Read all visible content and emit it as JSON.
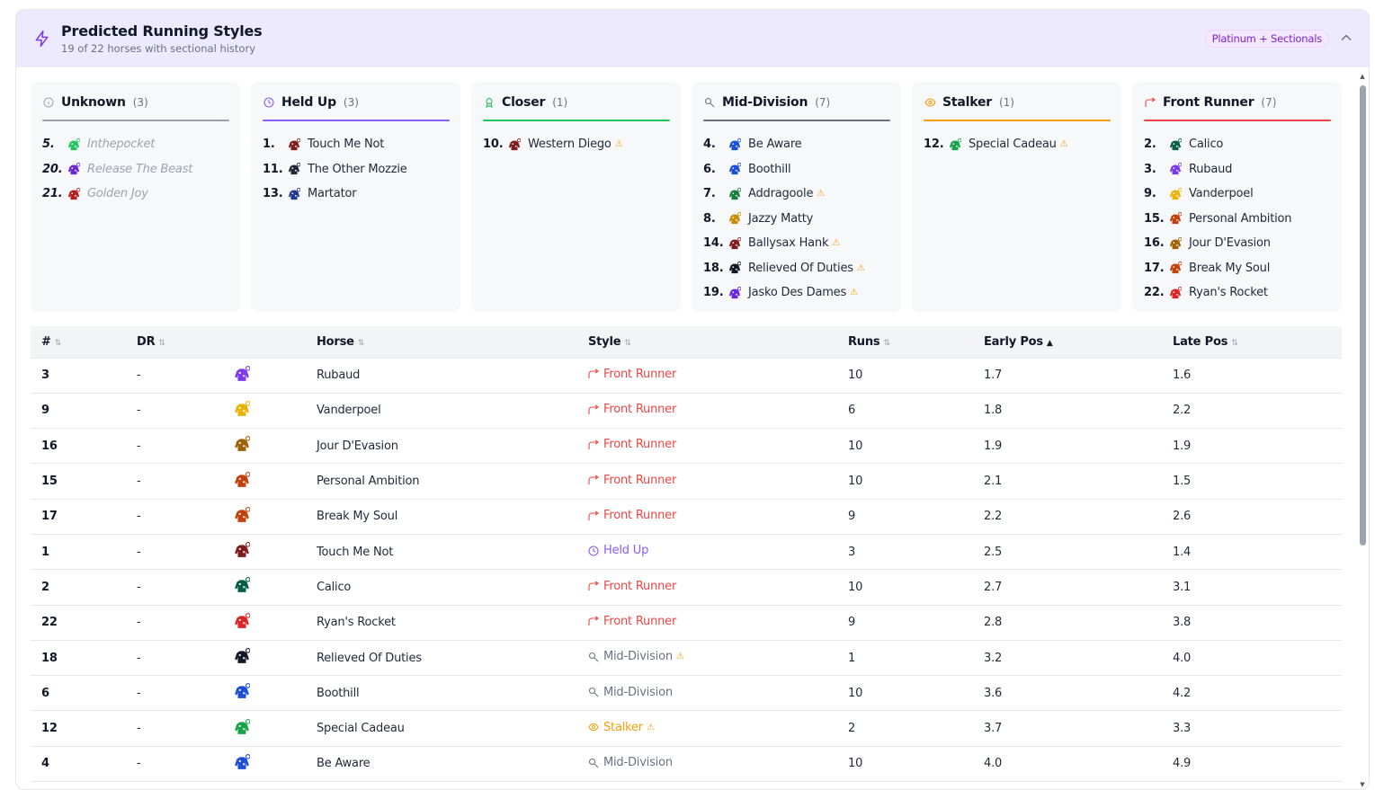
{
  "header": {
    "title": "Predicted Running Styles",
    "subtitle": "19 of 22 horses with sectional history",
    "badge": "Platinum + Sectionals"
  },
  "colors": {
    "unknown": "#9ca3af",
    "held_up": "#8b5cf6",
    "closer": "#22c55e",
    "mid_division": "#6b7280",
    "stalker": "#f59e0b",
    "front_runner": "#ef4444"
  },
  "styles": [
    {
      "key": "unknown",
      "name": "Unknown",
      "count": "(3)",
      "icon": "info-circle-icon",
      "items": [
        {
          "num": "5.",
          "name": "Inthepocket",
          "faded": true,
          "silk": "#22c55e"
        },
        {
          "num": "20.",
          "name": "Release The Beast",
          "faded": true,
          "silk": "#6d28d9"
        },
        {
          "num": "21.",
          "name": "Golden Joy",
          "faded": true,
          "silk": "#b91c1c"
        }
      ]
    },
    {
      "key": "held_up",
      "name": "Held Up",
      "count": "(3)",
      "icon": "clock-icon",
      "items": [
        {
          "num": "1.",
          "name": "Touch Me Not",
          "silk": "#7f1d1d"
        },
        {
          "num": "11.",
          "name": "The Other Mozzie",
          "silk": "#1f2937"
        },
        {
          "num": "13.",
          "name": "Martator",
          "silk": "#1e3a8a"
        }
      ]
    },
    {
      "key": "closer",
      "name": "Closer",
      "count": "(1)",
      "icon": "award-icon",
      "items": [
        {
          "num": "10.",
          "name": "Western Diego",
          "warn": true,
          "silk": "#7f1d1d"
        }
      ]
    },
    {
      "key": "mid_division",
      "name": "Mid-Division",
      "count": "(7)",
      "icon": "magnify-icon",
      "items": [
        {
          "num": "4.",
          "name": "Be Aware",
          "silk": "#1d4ed8"
        },
        {
          "num": "6.",
          "name": "Boothill",
          "silk": "#1d4ed8"
        },
        {
          "num": "7.",
          "name": "Addragoole",
          "warn": true,
          "silk": "#15803d"
        },
        {
          "num": "8.",
          "name": "Jazzy Matty",
          "silk": "#ca8a04"
        },
        {
          "num": "14.",
          "name": "Ballysax Hank",
          "warn": true,
          "silk": "#7f1d1d"
        },
        {
          "num": "18.",
          "name": "Relieved Of Duties",
          "warn": true,
          "silk": "#111827"
        },
        {
          "num": "19.",
          "name": "Jasko Des Dames",
          "warn": true,
          "silk": "#6d28d9"
        }
      ]
    },
    {
      "key": "stalker",
      "name": "Stalker",
      "count": "(1)",
      "icon": "eye-icon",
      "items": [
        {
          "num": "12.",
          "name": "Special Cadeau",
          "warn": true,
          "silk": "#16a34a"
        }
      ]
    },
    {
      "key": "front_runner",
      "name": "Front Runner",
      "count": "(7)",
      "icon": "trend-up-icon",
      "items": [
        {
          "num": "2.",
          "name": "Calico",
          "silk": "#065f46"
        },
        {
          "num": "3.",
          "name": "Rubaud",
          "silk": "#7c3aed"
        },
        {
          "num": "9.",
          "name": "Vanderpoel",
          "silk": "#eab308"
        },
        {
          "num": "15.",
          "name": "Personal Ambition",
          "silk": "#c2410c"
        },
        {
          "num": "16.",
          "name": "Jour D'Evasion",
          "silk": "#a16207"
        },
        {
          "num": "17.",
          "name": "Break My Soul",
          "silk": "#c2410c"
        },
        {
          "num": "22.",
          "name": "Ryan's Rocket",
          "silk": "#dc2626"
        }
      ]
    }
  ],
  "table": {
    "columns": [
      "#",
      "DR",
      "",
      "Horse",
      "Style",
      "Runs",
      "Early Pos",
      "Late Pos"
    ],
    "rows": [
      {
        "no": "3",
        "dr": "-",
        "horse": "Rubaud",
        "style": "Front Runner",
        "skey": "front_runner",
        "runs": "10",
        "early": "1.7",
        "late": "1.6",
        "silk": "#7c3aed"
      },
      {
        "no": "9",
        "dr": "-",
        "horse": "Vanderpoel",
        "style": "Front Runner",
        "skey": "front_runner",
        "runs": "6",
        "early": "1.8",
        "late": "2.2",
        "silk": "#eab308"
      },
      {
        "no": "16",
        "dr": "-",
        "horse": "Jour D'Evasion",
        "style": "Front Runner",
        "skey": "front_runner",
        "runs": "10",
        "early": "1.9",
        "late": "1.9",
        "silk": "#a16207"
      },
      {
        "no": "15",
        "dr": "-",
        "horse": "Personal Ambition",
        "style": "Front Runner",
        "skey": "front_runner",
        "runs": "10",
        "early": "2.1",
        "late": "1.5",
        "silk": "#c2410c"
      },
      {
        "no": "17",
        "dr": "-",
        "horse": "Break My Soul",
        "style": "Front Runner",
        "skey": "front_runner",
        "runs": "9",
        "early": "2.2",
        "late": "2.6",
        "silk": "#c2410c"
      },
      {
        "no": "1",
        "dr": "-",
        "horse": "Touch Me Not",
        "style": "Held Up",
        "skey": "held_up",
        "runs": "3",
        "early": "2.5",
        "late": "1.4",
        "silk": "#7f1d1d"
      },
      {
        "no": "2",
        "dr": "-",
        "horse": "Calico",
        "style": "Front Runner",
        "skey": "front_runner",
        "runs": "10",
        "early": "2.7",
        "late": "3.1",
        "silk": "#065f46"
      },
      {
        "no": "22",
        "dr": "-",
        "horse": "Ryan's Rocket",
        "style": "Front Runner",
        "skey": "front_runner",
        "runs": "9",
        "early": "2.8",
        "late": "3.8",
        "silk": "#dc2626"
      },
      {
        "no": "18",
        "dr": "-",
        "horse": "Relieved Of Duties",
        "style": "Mid-Division",
        "skey": "mid_division",
        "warn": true,
        "runs": "1",
        "early": "3.2",
        "late": "4.0",
        "silk": "#111827"
      },
      {
        "no": "6",
        "dr": "-",
        "horse": "Boothill",
        "style": "Mid-Division",
        "skey": "mid_division",
        "runs": "10",
        "early": "3.6",
        "late": "4.2",
        "silk": "#1d4ed8"
      },
      {
        "no": "12",
        "dr": "-",
        "horse": "Special Cadeau",
        "style": "Stalker",
        "skey": "stalker",
        "warn": true,
        "runs": "2",
        "early": "3.7",
        "late": "3.3",
        "silk": "#16a34a"
      },
      {
        "no": "4",
        "dr": "-",
        "horse": "Be Aware",
        "style": "Mid-Division",
        "skey": "mid_division",
        "runs": "10",
        "early": "4.0",
        "late": "4.9",
        "silk": "#1d4ed8"
      }
    ]
  }
}
